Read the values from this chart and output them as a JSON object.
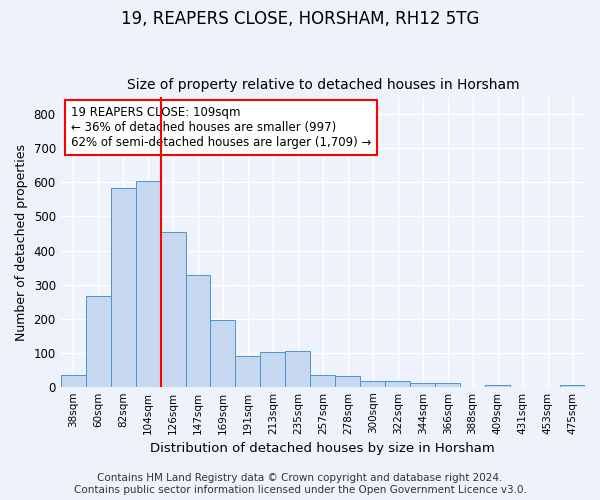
{
  "title1": "19, REAPERS CLOSE, HORSHAM, RH12 5TG",
  "title2": "Size of property relative to detached houses in Horsham",
  "xlabel": "Distribution of detached houses by size in Horsham",
  "ylabel": "Number of detached properties",
  "categories": [
    "38sqm",
    "60sqm",
    "82sqm",
    "104sqm",
    "126sqm",
    "147sqm",
    "169sqm",
    "191sqm",
    "213sqm",
    "235sqm",
    "257sqm",
    "278sqm",
    "300sqm",
    "322sqm",
    "344sqm",
    "366sqm",
    "388sqm",
    "409sqm",
    "431sqm",
    "453sqm",
    "475sqm"
  ],
  "values": [
    35,
    265,
    585,
    605,
    453,
    328,
    195,
    90,
    102,
    105,
    35,
    30,
    16,
    17,
    12,
    10,
    0,
    6,
    0,
    0,
    6
  ],
  "bar_color": "#c5d8f0",
  "bar_edge_color": "#4d94cc",
  "vline_x": 3.5,
  "vline_color": "red",
  "annotation_text": "19 REAPERS CLOSE: 109sqm\n← 36% of detached houses are smaller (997)\n62% of semi-detached houses are larger (1,709) →",
  "annotation_box_color": "white",
  "annotation_box_edge": "red",
  "ylim": [
    0,
    850
  ],
  "yticks": [
    0,
    100,
    200,
    300,
    400,
    500,
    600,
    700,
    800
  ],
  "footer1": "Contains HM Land Registry data © Crown copyright and database right 2024.",
  "footer2": "Contains public sector information licensed under the Open Government Licence v3.0.",
  "bg_color": "#eef2fc",
  "plot_bg_color": "#eef2fc",
  "grid_color": "white",
  "title1_fontsize": 12,
  "title2_fontsize": 10,
  "xlabel_fontsize": 9.5,
  "ylabel_fontsize": 9,
  "footer_fontsize": 7.5
}
